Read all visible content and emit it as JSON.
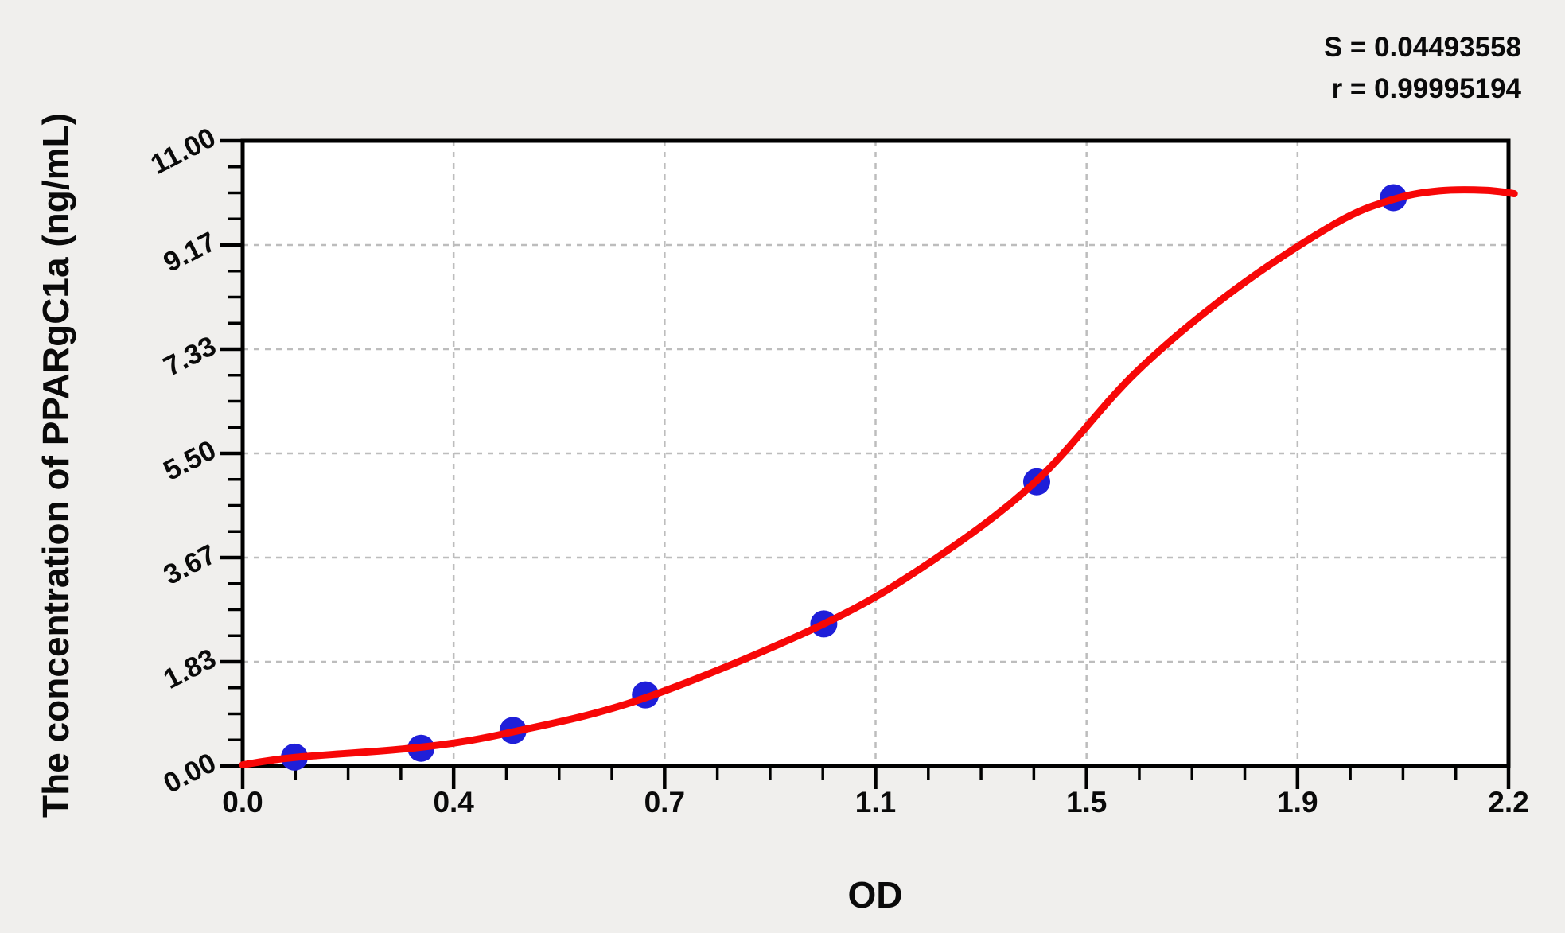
{
  "chart_data": {
    "type": "scatter",
    "xlabel": "OD",
    "ylabel": "The concentration of PPARgC1a (ng/mL)",
    "xlim": [
      0,
      2.2
    ],
    "ylim": [
      0,
      11
    ],
    "x_tick_labels": [
      "0.0",
      "0.4",
      "0.7",
      "1.1",
      "1.5",
      "1.9",
      "2.2"
    ],
    "y_tick_labels": [
      "0.00",
      "1.83",
      "3.67",
      "5.50",
      "7.33",
      "9.17",
      "11.00"
    ],
    "minor_ticks_per_major": 4,
    "grid": "dashed, at major ticks, light gray",
    "legend_position": "none",
    "stats": {
      "s_label": "S = 0.04493558",
      "r_label": "r = 0.99995194"
    },
    "series": [
      {
        "name": "standard-points",
        "marker": "circle",
        "color": "#1f1fd9",
        "points": [
          {
            "od": 0.09,
            "conc": 0.156
          },
          {
            "od": 0.31,
            "conc": 0.312
          },
          {
            "od": 0.47,
            "conc": 0.625
          },
          {
            "od": 0.7,
            "conc": 1.25
          },
          {
            "od": 1.01,
            "conc": 2.5
          },
          {
            "od": 1.38,
            "conc": 5.0
          },
          {
            "od": 2.0,
            "conc": 10.0
          }
        ]
      }
    ],
    "fit_curve": {
      "name": "4PL-fit-curve",
      "color": "#f70707",
      "control_points": [
        [
          0.0,
          0.02
        ],
        [
          0.09,
          0.15
        ],
        [
          0.31,
          0.33
        ],
        [
          0.47,
          0.6
        ],
        [
          0.7,
          1.2
        ],
        [
          1.01,
          2.5
        ],
        [
          1.2,
          3.62
        ],
        [
          1.38,
          5.02
        ],
        [
          1.55,
          6.9
        ],
        [
          1.72,
          8.35
        ],
        [
          1.9,
          9.55
        ],
        [
          2.0,
          9.97
        ],
        [
          2.08,
          10.12
        ],
        [
          2.16,
          10.13
        ],
        [
          2.21,
          10.07
        ]
      ]
    },
    "colors": {
      "background": "#f0efed",
      "plot_background": "#ffffff",
      "axis": "#000000",
      "gridline": "#bdbdbd",
      "point": "#1f1fd9",
      "curve": "#f70707",
      "text": "#0a0a0a"
    }
  }
}
